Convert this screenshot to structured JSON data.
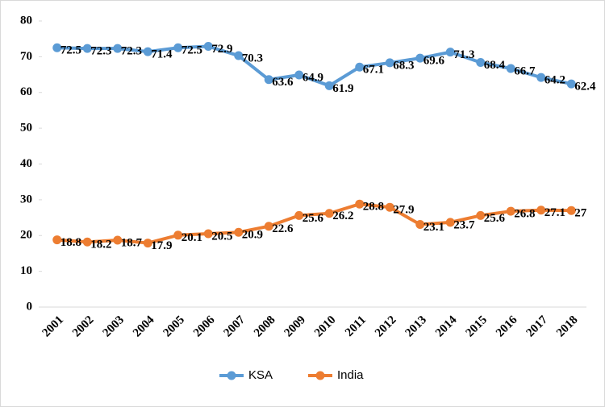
{
  "chart_data": {
    "type": "line",
    "categories": [
      "2001",
      "2002",
      "2003",
      "2004",
      "2005",
      "2006",
      "2007",
      "2008",
      "2009",
      "2010",
      "2011",
      "2012",
      "2013",
      "2014",
      "2015",
      "2016",
      "2017",
      "2018"
    ],
    "series": [
      {
        "name": "KSA",
        "color": "#5b9bd5",
        "values": [
          72.5,
          72.3,
          72.3,
          71.4,
          72.5,
          72.9,
          70.3,
          63.6,
          64.9,
          61.9,
          67.1,
          68.3,
          69.6,
          71.3,
          68.4,
          66.7,
          64.2,
          62.4
        ]
      },
      {
        "name": "India",
        "color": "#ed7d31",
        "values": [
          18.8,
          18.2,
          18.7,
          17.9,
          20.1,
          20.5,
          20.9,
          22.6,
          25.6,
          26.2,
          28.8,
          27.9,
          23.1,
          23.7,
          25.6,
          26.8,
          27.1,
          27
        ]
      }
    ],
    "ylim": [
      0,
      80
    ],
    "yticks": [
      0,
      10,
      20,
      30,
      40,
      50,
      60,
      70,
      80
    ],
    "legend": "bottom"
  }
}
